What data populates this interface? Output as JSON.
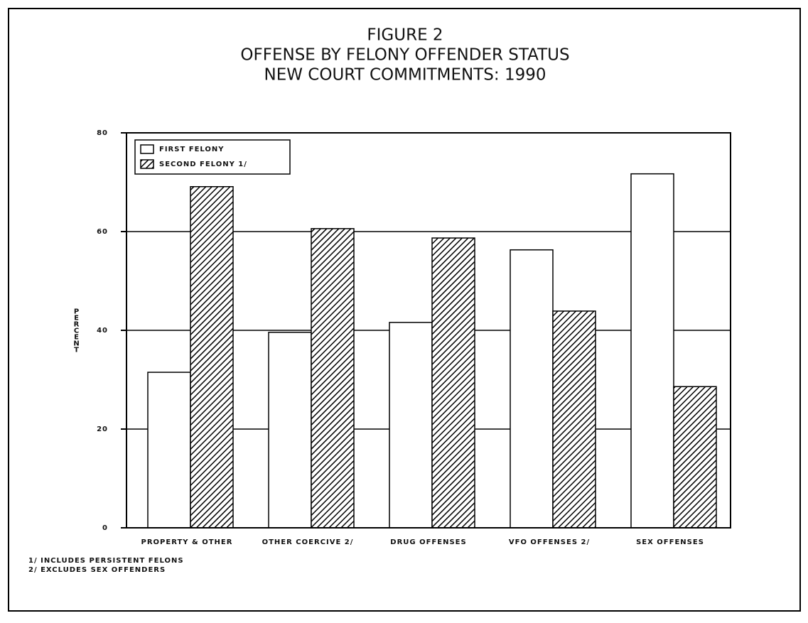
{
  "chart_data": {
    "type": "bar",
    "title": [
      "FIGURE 2",
      "OFFENSE BY FELONY OFFENDER STATUS",
      "NEW COURT COMMITMENTS: 1990"
    ],
    "y_label": "PERCENT",
    "categories": [
      "PROPERTY & OTHER",
      "OTHER COERCIVE 2/",
      "DRUG OFFENSES",
      "VFO OFFENSES 2/",
      "SEX OFFENSES"
    ],
    "series": [
      {
        "name": "FIRST FELONY",
        "color": "#ffffff",
        "values": [
          31.5,
          39.6,
          41.6,
          56.3,
          71.7
        ]
      },
      {
        "name": "SECOND FELONY 1/",
        "color": "#000000",
        "hatch": true,
        "values": [
          69.1,
          60.6,
          58.7,
          43.9,
          28.6
        ]
      }
    ],
    "ylim": [
      0,
      80
    ],
    "yticks": [
      0,
      20,
      40,
      60,
      80
    ],
    "grid": true,
    "legend": "top-left",
    "notes": [
      "1/ INCLUDES PERSISTENT FELONS",
      "2/ EXCLUDES SEX OFFENDERS"
    ]
  }
}
